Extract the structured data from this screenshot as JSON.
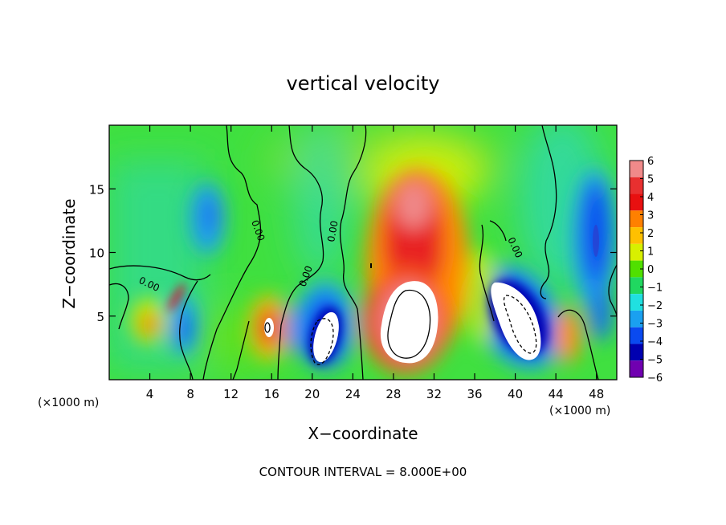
{
  "chart_data": {
    "type": "heatmap",
    "title": "vertical velocity",
    "xlabel": "X−coordinate",
    "ylabel": "Z−coordinate",
    "x_unit": "(×1000 m)",
    "xlim": [
      0,
      50
    ],
    "ylim": [
      0,
      20
    ],
    "x_ticks": [
      "4",
      "8",
      "12",
      "16",
      "20",
      "24",
      "28",
      "32",
      "36",
      "40",
      "44",
      "48"
    ],
    "x_tick_values": [
      4,
      8,
      12,
      16,
      20,
      24,
      28,
      32,
      36,
      40,
      44,
      48
    ],
    "y_ticks": [
      "5",
      "10",
      "15"
    ],
    "y_tick_values": [
      5,
      10,
      15
    ],
    "colorbar": {
      "labels": [
        "6",
        "5",
        "4",
        "3",
        "2",
        "1",
        "0",
        "−1",
        "−2",
        "−3",
        "−4",
        "−5",
        "−6"
      ],
      "levels": [
        6,
        5,
        4,
        3,
        2,
        1,
        0,
        -1,
        -2,
        -3,
        -4,
        -5,
        -6
      ],
      "colors": [
        "#f08a8a",
        "#e83030",
        "#e81010",
        "#ff8000",
        "#ffc000",
        "#d8f000",
        "#50e000",
        "#20d860",
        "#20e0e0",
        "#1aa0f0",
        "#0a4af0",
        "#0000b0",
        "#7000b0"
      ]
    },
    "contour_label": "0.00",
    "footer": "CONTOUR INTERVAL = 8.000E+00",
    "features": [
      {
        "type": "updraft",
        "x": 4.2,
        "z": 4.5,
        "peak": 4
      },
      {
        "type": "downdraft",
        "x": 6.8,
        "z": 4.0,
        "peak": -4
      },
      {
        "type": "downdraft",
        "x": 9.7,
        "z": 12.5,
        "peak": -3
      },
      {
        "type": "updraft",
        "x": 15.3,
        "z": 4.2,
        "peak": 5
      },
      {
        "type": "downdraft",
        "x": 18.4,
        "z": 4.0,
        "peak": -5
      },
      {
        "type": "downdraft",
        "x": 21.3,
        "z": 3.6,
        "peak": -8
      },
      {
        "type": "updraft",
        "x": 29.5,
        "z": 5.0,
        "peak": 8
      },
      {
        "type": "updraft",
        "x": 30.0,
        "z": 13.5,
        "peak": 5
      },
      {
        "type": "downdraft",
        "x": 40.2,
        "z": 5.5,
        "peak": -8
      },
      {
        "type": "updraft",
        "x": 45.0,
        "z": 3.5,
        "peak": 3
      },
      {
        "type": "downdraft",
        "x": 47.2,
        "z": 10.5,
        "peak": -5
      },
      {
        "type": "downdraft",
        "x": 47.5,
        "z": 4.5,
        "peak": -4
      }
    ]
  }
}
